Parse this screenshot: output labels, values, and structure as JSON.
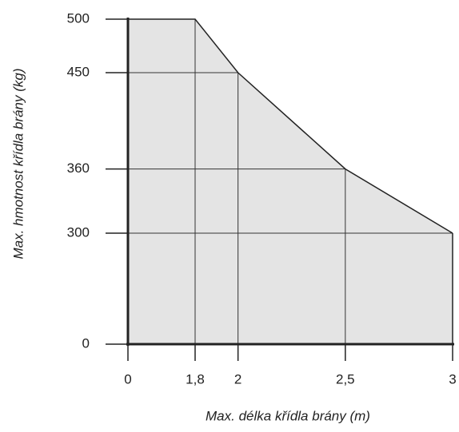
{
  "chart_data": {
    "type": "area",
    "xlabel": "Max. délka křídla brány (m)",
    "ylabel": "Max. hmotnost křídla brány (kg)",
    "x": [
      0,
      1.8,
      2,
      2.5,
      3
    ],
    "series": [
      {
        "color": "#e4e4e4",
        "values": [
          500,
          500,
          450,
          360,
          300
        ]
      }
    ],
    "xlim": [
      0,
      3
    ],
    "ylim": [
      0,
      500
    ],
    "xticks": [
      0,
      {
        "value": 1.8,
        "label": "1,8"
      },
      2,
      {
        "value": 2.5,
        "label": "2,5"
      },
      3
    ],
    "yticks": [
      0,
      300,
      360,
      450,
      500
    ],
    "grid": true
  }
}
